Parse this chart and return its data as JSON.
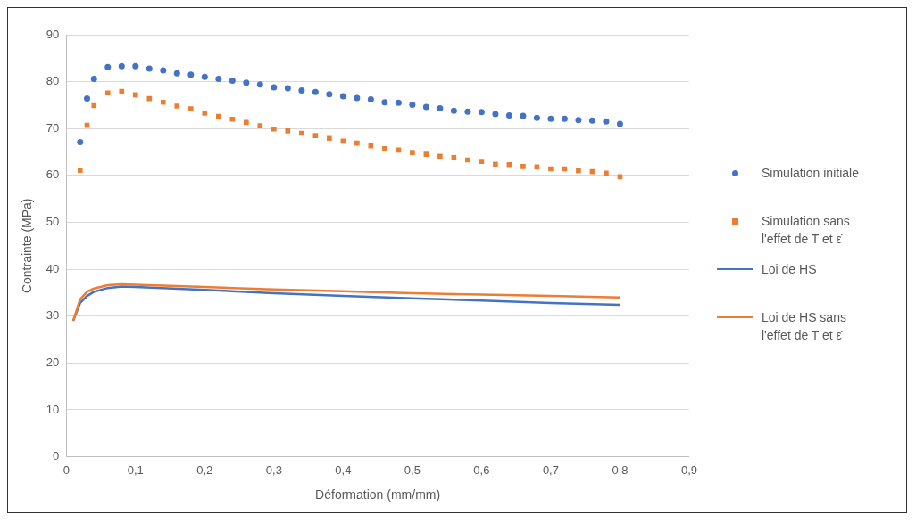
{
  "chart_data": {
    "type": "scatter",
    "xlabel": "Déformation (mm/mm)",
    "ylabel": "Contrainte (MPa)",
    "xlim": [
      0,
      0.9
    ],
    "xticks": [
      0,
      {
        "value": 0.1,
        "label": "0,1"
      },
      {
        "value": 0.2,
        "label": "0,2"
      },
      {
        "value": 0.3,
        "label": "0,3"
      },
      {
        "value": 0.4,
        "label": "0,4"
      },
      {
        "value": 0.5,
        "label": "0,5"
      },
      {
        "value": 0.6,
        "label": "0,6"
      },
      {
        "value": 0.7,
        "label": "0,7"
      },
      {
        "value": 0.8,
        "label": "0,8"
      },
      {
        "value": 0.9,
        "label": "0,9"
      }
    ],
    "ylim": [
      0,
      90
    ],
    "yticks": [
      0,
      10,
      20,
      30,
      40,
      50,
      60,
      70,
      80,
      90
    ],
    "grid": "y",
    "legend": "right",
    "series": [
      {
        "name": "Simulation initiale",
        "marker": "circle",
        "color": "#4472c4",
        "x": [
          0.02,
          0.03,
          0.04,
          0.06,
          0.08,
          0.1,
          0.12,
          0.14,
          0.16,
          0.18,
          0.2,
          0.22,
          0.24,
          0.26,
          0.28,
          0.3,
          0.32,
          0.34,
          0.36,
          0.38,
          0.4,
          0.42,
          0.44,
          0.46,
          0.48,
          0.5,
          0.52,
          0.54,
          0.56,
          0.58,
          0.6,
          0.62,
          0.64,
          0.66,
          0.68,
          0.7,
          0.72,
          0.74,
          0.76,
          0.78,
          0.8
        ],
        "values": [
          67.1,
          76.4,
          80.6,
          83.1,
          83.3,
          83.3,
          82.8,
          82.4,
          81.8,
          81.5,
          81.0,
          80.6,
          80.2,
          79.8,
          79.4,
          78.8,
          78.6,
          78.1,
          77.8,
          77.3,
          76.9,
          76.5,
          76.2,
          75.6,
          75.5,
          75.1,
          74.6,
          74.3,
          73.8,
          73.6,
          73.5,
          73.1,
          72.8,
          72.7,
          72.3,
          72.1,
          72.1,
          71.8,
          71.7,
          71.5,
          71.0
        ]
      },
      {
        "name": "Simulation sans l'effet de T et ε̇",
        "marker": "square",
        "color": "#ed7d31",
        "x": [
          0.02,
          0.03,
          0.04,
          0.06,
          0.08,
          0.1,
          0.12,
          0.14,
          0.16,
          0.18,
          0.2,
          0.22,
          0.24,
          0.26,
          0.28,
          0.3,
          0.32,
          0.34,
          0.36,
          0.38,
          0.4,
          0.42,
          0.44,
          0.46,
          0.48,
          0.5,
          0.52,
          0.54,
          0.56,
          0.58,
          0.6,
          0.62,
          0.64,
          0.66,
          0.68,
          0.7,
          0.72,
          0.74,
          0.76,
          0.78,
          0.8
        ],
        "values": [
          61.1,
          70.7,
          74.9,
          77.6,
          77.9,
          77.2,
          76.4,
          75.6,
          74.8,
          74.2,
          73.3,
          72.6,
          72.0,
          71.3,
          70.6,
          69.9,
          69.5,
          69.0,
          68.5,
          67.9,
          67.3,
          66.9,
          66.3,
          65.7,
          65.4,
          64.9,
          64.5,
          64.1,
          63.8,
          63.3,
          63.0,
          62.4,
          62.3,
          61.9,
          61.8,
          61.4,
          61.4,
          61.0,
          60.8,
          60.5,
          59.7
        ]
      },
      {
        "name": "Loi de HS",
        "type": "line",
        "marker": "none",
        "color": "#4472c4",
        "x": [
          0.01,
          0.02,
          0.03,
          0.04,
          0.06,
          0.08,
          0.1,
          0.2,
          0.3,
          0.4,
          0.5,
          0.6,
          0.7,
          0.8
        ],
        "values": [
          29.0,
          32.8,
          34.3,
          35.2,
          36.0,
          36.3,
          36.2,
          35.6,
          34.9,
          34.3,
          33.8,
          33.3,
          32.8,
          32.4
        ]
      },
      {
        "name": "Loi de HS sans l'effet de T et ε̇",
        "type": "line",
        "marker": "none",
        "color": "#ed7d31",
        "x": [
          0.01,
          0.02,
          0.03,
          0.04,
          0.06,
          0.08,
          0.1,
          0.2,
          0.3,
          0.4,
          0.5,
          0.6,
          0.7,
          0.8
        ],
        "values": [
          29.0,
          33.6,
          35.2,
          35.9,
          36.6,
          36.8,
          36.7,
          36.2,
          35.7,
          35.3,
          34.9,
          34.6,
          34.3,
          34.0
        ]
      }
    ]
  }
}
